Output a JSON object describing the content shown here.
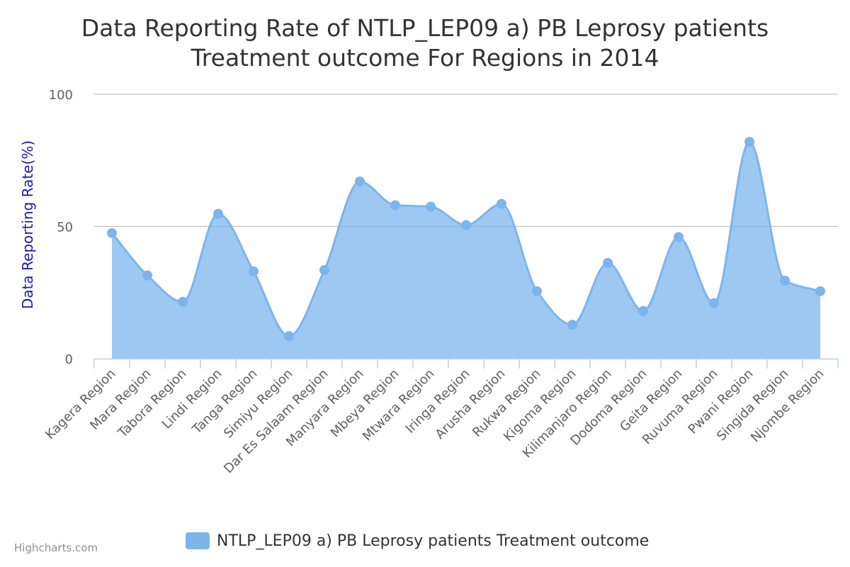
{
  "chart_data": {
    "type": "area",
    "title_line1": "Data Reporting Rate of NTLP_LEP09 a) PB Leprosy patients",
    "title_line2": "Treatment outcome For Regions in 2014",
    "ylabel": "Data Reporting Rate(%)",
    "xlabel": "",
    "ylim": [
      0,
      100
    ],
    "yticks": [
      0,
      50,
      100
    ],
    "grid": true,
    "legend_position": "bottom-center",
    "categories": [
      "Kagera Region",
      "Mara Region",
      "Tabora Region",
      "Lindi Region",
      "Tanga Region",
      "Simiyu Region",
      "Dar Es Salaam Region",
      "Manyara Region",
      "Mbeya Region",
      "Mtwara Region",
      "Iringa Region",
      "Arusha Region",
      "Rukwa Region",
      "Kigoma Region",
      "Kilimanjaro Region",
      "Dodoma Region",
      "Geita Region",
      "Ruvuma Region",
      "Pwani Region",
      "Singida Region",
      "Njombe Region"
    ],
    "series": [
      {
        "name": "NTLP_LEP09 a) PB Leprosy patients Treatment outcome",
        "color": "#7cb5ec",
        "values": [
          47.5,
          31.5,
          21.5,
          54.8,
          33.0,
          8.5,
          33.5,
          67.0,
          58.0,
          57.5,
          50.5,
          58.5,
          25.5,
          12.8,
          36.2,
          18.0,
          46.0,
          21.0,
          82.0,
          29.5,
          25.5
        ]
      }
    ],
    "credits": "Highcharts.com"
  }
}
